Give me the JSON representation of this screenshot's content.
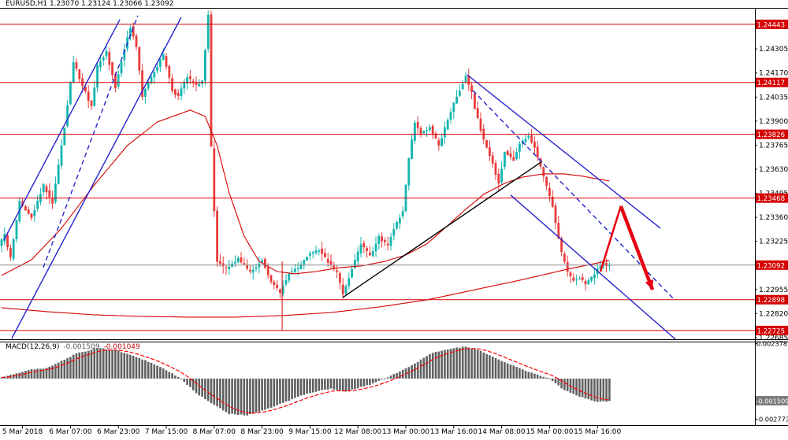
{
  "window": {
    "title_text": "EURUSD,H1 1.23070 1.23124 1.23066 1.23092"
  },
  "chart_data": {
    "type": "candlestick",
    "symbol": "EURUSD",
    "timeframe": "H1",
    "ohlc": {
      "open": 1.2307,
      "high": 1.23124,
      "low": 1.23066,
      "close": 1.23092
    },
    "current_price": 1.23092,
    "bars_total": 204,
    "price_axis": {
      "ylim": {
        "top": 1.24531,
        "bottom": 1.22676
      },
      "plain_labels": [
        "1.24305",
        "1.24170",
        "1.24035",
        "1.23900",
        "1.23765",
        "1.23630",
        "1.23495",
        "1.23360",
        "1.23225",
        "1.22955",
        "1.22820",
        "1.22685"
      ],
      "level_flags": [
        "1.24443",
        "1.24117",
        "1.23826",
        "1.23468",
        "1.22898",
        "1.22725"
      ],
      "current_flag": "1.23092"
    },
    "x_axis": {
      "labels": [
        "5 Mar 2018",
        "6 Mar 07:00",
        "6 Mar 23:00",
        "7 Mar 15:00",
        "8 Mar 07:00",
        "8 Mar 23:00",
        "9 Mar 15:00",
        "12 Mar 08:00",
        "13 Mar 00:00",
        "13 Mar 16:00",
        "14 Mar 08:00",
        "15 Mar 00:00",
        "15 Mar 16:00"
      ],
      "tick_bars": [
        7,
        23,
        39,
        55,
        71,
        87,
        103,
        119,
        135,
        151,
        167,
        183,
        199
      ]
    },
    "levels": [
      1.24443,
      1.24117,
      1.23826,
      1.23468,
      1.22898,
      1.22725
    ],
    "price_path": [
      [
        0,
        1.232
      ],
      [
        2,
        1.2326
      ],
      [
        4,
        1.2313
      ],
      [
        7,
        1.2345
      ],
      [
        11,
        1.2336
      ],
      [
        15,
        1.2354
      ],
      [
        18,
        1.2344
      ],
      [
        22,
        1.2387
      ],
      [
        25,
        1.2423
      ],
      [
        28,
        1.241
      ],
      [
        31,
        1.2398
      ],
      [
        33,
        1.2421
      ],
      [
        36,
        1.2429
      ],
      [
        39,
        1.2409
      ],
      [
        42,
        1.2431
      ],
      [
        44,
        1.2443
      ],
      [
        46,
        1.2432
      ],
      [
        48,
        1.2404
      ],
      [
        51,
        1.2415
      ],
      [
        55,
        1.2427
      ],
      [
        58,
        1.2407
      ],
      [
        60,
        1.2404
      ],
      [
        63,
        1.2415
      ],
      [
        66,
        1.241
      ],
      [
        68,
        1.2412
      ],
      [
        69,
        1.243
      ],
      [
        70,
        1.245
      ],
      [
        71,
        1.2375
      ],
      [
        72,
        1.234
      ],
      [
        73,
        1.2311
      ],
      [
        76,
        1.2307
      ],
      [
        80,
        1.2313
      ],
      [
        84,
        1.2305
      ],
      [
        88,
        1.2312
      ],
      [
        91,
        1.23
      ],
      [
        94,
        1.2294
      ],
      [
        97,
        1.2305
      ],
      [
        100,
        1.2307
      ],
      [
        104,
        1.2316
      ],
      [
        107,
        1.2318
      ],
      [
        110,
        1.2311
      ],
      [
        113,
        1.2305
      ],
      [
        115,
        1.2293
      ],
      [
        118,
        1.2307
      ],
      [
        121,
        1.2321
      ],
      [
        124,
        1.2314
      ],
      [
        127,
        1.2325
      ],
      [
        130,
        1.232
      ],
      [
        132,
        1.233
      ],
      [
        135,
        1.2339
      ],
      [
        137,
        1.2369
      ],
      [
        139,
        1.2389
      ],
      [
        141,
        1.2383
      ],
      [
        144,
        1.2387
      ],
      [
        147,
        1.2376
      ],
      [
        150,
        1.2391
      ],
      [
        153,
        1.2404
      ],
      [
        156,
        1.2415
      ],
      [
        158,
        1.2406
      ],
      [
        159,
        1.2397
      ],
      [
        162,
        1.2379
      ],
      [
        165,
        1.2366
      ],
      [
        167,
        1.2355
      ],
      [
        169,
        1.2373
      ],
      [
        172,
        1.2368
      ],
      [
        174,
        1.2377
      ],
      [
        177,
        1.2382
      ],
      [
        179,
        1.2375
      ],
      [
        181,
        1.2364
      ],
      [
        183,
        1.2353
      ],
      [
        185,
        1.2342
      ],
      [
        187,
        1.2324
      ],
      [
        188,
        1.2316
      ],
      [
        190,
        1.2305
      ],
      [
        192,
        1.23
      ],
      [
        194,
        1.2302
      ],
      [
        196,
        1.2299
      ],
      [
        198,
        1.2302
      ],
      [
        200,
        1.2307
      ],
      [
        202,
        1.2311
      ],
      [
        203,
        1.23092
      ]
    ],
    "moving_averages": [
      {
        "name": "ma-slow",
        "color": "#d40000",
        "path": [
          [
            0,
            1.22853
          ],
          [
            15,
            1.22831
          ],
          [
            31,
            1.22813
          ],
          [
            47,
            1.22804
          ],
          [
            63,
            1.228
          ],
          [
            78,
            1.228
          ],
          [
            94,
            1.22809
          ],
          [
            110,
            1.22826
          ],
          [
            126,
            1.22857
          ],
          [
            142,
            1.22897
          ],
          [
            157,
            1.2295
          ],
          [
            173,
            1.23007
          ],
          [
            189,
            1.23069
          ],
          [
            203,
            1.23118
          ]
        ]
      },
      {
        "name": "ma-fast",
        "color": "#d40000",
        "path": [
          [
            0,
            1.23034
          ],
          [
            10,
            1.23122
          ],
          [
            20,
            1.23299
          ],
          [
            31,
            1.23542
          ],
          [
            42,
            1.23763
          ],
          [
            52,
            1.23895
          ],
          [
            63,
            1.23962
          ],
          [
            68,
            1.23926
          ],
          [
            72,
            1.23763
          ],
          [
            76,
            1.23498
          ],
          [
            81,
            1.23255
          ],
          [
            86,
            1.23113
          ],
          [
            92,
            1.23056
          ],
          [
            98,
            1.23043
          ],
          [
            105,
            1.23056
          ],
          [
            113,
            1.23078
          ],
          [
            120,
            1.23087
          ],
          [
            128,
            1.23113
          ],
          [
            135,
            1.23149
          ],
          [
            142,
            1.23211
          ],
          [
            148,
            1.23299
          ],
          [
            155,
            1.23405
          ],
          [
            161,
            1.23489
          ],
          [
            168,
            1.23551
          ],
          [
            174,
            1.23586
          ],
          [
            181,
            1.23604
          ],
          [
            188,
            1.23604
          ],
          [
            194,
            1.23591
          ],
          [
            203,
            1.23564
          ]
        ]
      }
    ],
    "trendlines": [
      {
        "name": "ascending-channel-upper",
        "style": "solid",
        "color": "#2323cc",
        "from": [
          0.8,
          1.23233
        ],
        "to": [
          39.5,
          1.2447
        ]
      },
      {
        "name": "ascending-channel-lower",
        "style": "solid",
        "color": "#2323cc",
        "from": [
          3.4,
          1.22681
        ],
        "to": [
          60,
          1.24483
        ]
      },
      {
        "name": "ascending-dashed",
        "style": "dashed",
        "color": "#2323cc",
        "from": [
          13.9,
          1.23078
        ],
        "to": [
          45.5,
          1.24492
        ]
      },
      {
        "name": "support-trendline-black",
        "style": "solid",
        "color": "#000000",
        "from": [
          113.9,
          1.2291
        ],
        "to": [
          180.5,
          1.23674
        ]
      },
      {
        "name": "descending-channel-upper",
        "style": "solid",
        "color": "#2323cc",
        "from": [
          155.5,
          1.2416
        ],
        "to": [
          220,
          1.23299
        ]
      },
      {
        "name": "descending-channel-lower",
        "style": "solid",
        "color": "#2323cc",
        "from": [
          170,
          1.23485
        ],
        "to": [
          225.3,
          1.22672
        ]
      },
      {
        "name": "descending-dashed",
        "style": "dashed",
        "color": "#2323cc",
        "from": [
          157.4,
          1.24072
        ],
        "to": [
          224.5,
          1.22901
        ]
      }
    ],
    "vertical_line": {
      "bar": 93.7,
      "from_price": 1.23113,
      "to_price": 1.22725,
      "color": "#d40000"
    },
    "arrow": {
      "color": "#e60012",
      "widths": [
        2.5,
        4.5
      ],
      "points": [
        [
          200,
          1.23056
        ],
        [
          206.8,
          1.23423
        ],
        [
          217.4,
          1.22954
        ]
      ]
    },
    "macd": {
      "label": "MACD(12,26,9)",
      "value_main": "-0.001509",
      "value_signal": "-0.001049",
      "ylim": {
        "top": 0.00247,
        "bottom": -0.00317
      },
      "plain_labels": [
        {
          "text": "0.002378",
          "value": 0.002378
        },
        {
          "text": "-0.002773",
          "value": -0.002773
        }
      ],
      "current_flag": {
        "text": "-0.001509",
        "value": -0.001509
      },
      "path": [
        [
          0,
          0.0001
        ],
        [
          2,
          0.0002
        ],
        [
          9,
          0.0006
        ],
        [
          15,
          0.0007
        ],
        [
          25,
          0.0017
        ],
        [
          32,
          0.0021
        ],
        [
          39,
          0.0019
        ],
        [
          46,
          0.0014
        ],
        [
          54,
          0.0007
        ],
        [
          60,
          0.0
        ],
        [
          65,
          -0.001
        ],
        [
          71,
          -0.0018
        ],
        [
          76,
          -0.0024
        ],
        [
          82,
          -0.0025
        ],
        [
          88,
          -0.0021
        ],
        [
          95,
          -0.0016
        ],
        [
          102,
          -0.001
        ],
        [
          110,
          -0.0007
        ],
        [
          115,
          -0.0009
        ],
        [
          123,
          -0.0004
        ],
        [
          130,
          0.0002
        ],
        [
          138,
          0.001
        ],
        [
          143,
          0.0017
        ],
        [
          149,
          0.002
        ],
        [
          155,
          0.0022
        ],
        [
          160,
          0.0019
        ],
        [
          166,
          0.0013
        ],
        [
          172,
          0.0008
        ],
        [
          177,
          0.0004
        ],
        [
          183,
          0.0
        ],
        [
          188,
          -0.0008
        ],
        [
          194,
          -0.0013
        ],
        [
          199,
          -0.0016
        ],
        [
          203,
          -0.00155
        ]
      ]
    },
    "colors": {
      "up": "#12b5b0",
      "down": "#e93b3b",
      "level": "#d40000",
      "trend": "#2323cc",
      "ma": "#d40000",
      "arrow": "#e60012",
      "current_price_line": "#8a8a8a",
      "macd_histogram": "#5f5f5f",
      "macd_signal": "#ff0000",
      "flag_bg": "#d40000",
      "flag_text": "#ffffff",
      "macd_flag_bg": "#7a7a7a"
    }
  }
}
